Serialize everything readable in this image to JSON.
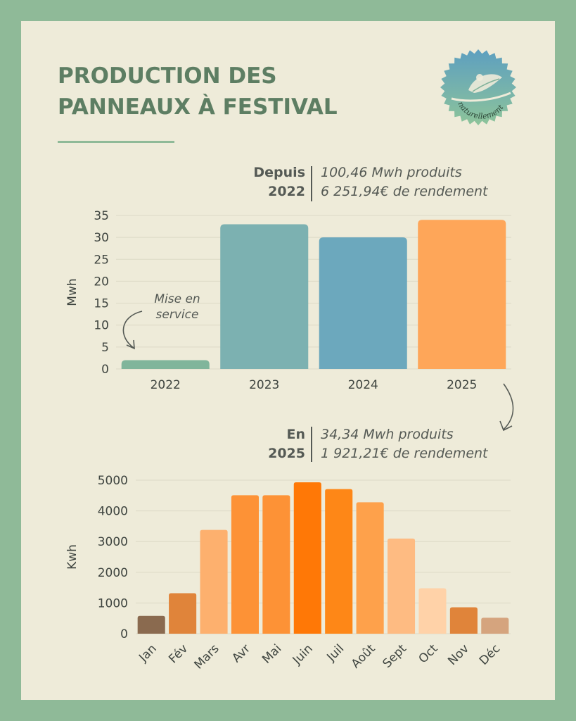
{
  "title": {
    "line1": "PRODUCTION DES",
    "line2": "PANNEAUX À FESTIVAL"
  },
  "logo": {
    "text": "naturellement",
    "icon": "leaf-sun-badge-icon"
  },
  "colors": {
    "frame": "#8fba98",
    "background": "#eeebd9",
    "title": "#5d7e63",
    "text": "#555a55"
  },
  "summary_total": {
    "label_line1": "Depuis",
    "label_line2": "2022",
    "value_line1": "100,46 Mwh produits",
    "value_line2": "6 251,94€ de rendement"
  },
  "summary_2025": {
    "label_line1": "En",
    "label_line2": "2025",
    "value_line1": "34,34 Mwh produits",
    "value_line2": "1 921,21€ de rendement"
  },
  "annotation": {
    "line1": "Mise en",
    "line2": "service"
  },
  "chart_data": [
    {
      "type": "bar",
      "categories": [
        "2022",
        "2023",
        "2024",
        "2025"
      ],
      "values": [
        2,
        33,
        30,
        34
      ],
      "ylabel": "Mwh",
      "ylim": [
        0,
        35
      ],
      "yticks": [
        0,
        5,
        10,
        15,
        20,
        25,
        30,
        35
      ],
      "grid": true,
      "colors": [
        "#80b59b",
        "#7cb1b1",
        "#6ca8bd",
        "#fea659"
      ]
    },
    {
      "type": "bar",
      "categories": [
        "Jan",
        "Fév",
        "Mars",
        "Avr",
        "Mai",
        "Juin",
        "Juil",
        "Août",
        "Sept",
        "Oct",
        "Nov",
        "Déc"
      ],
      "values": [
        580,
        1320,
        3380,
        4510,
        4510,
        4930,
        4710,
        4280,
        3100,
        1480,
        860,
        520
      ],
      "ylabel": "Kwh",
      "ylim": [
        0,
        5000
      ],
      "yticks": [
        0,
        1000,
        2000,
        3000,
        4000,
        5000
      ],
      "grid": true,
      "colors": [
        "#8a6a4f",
        "#e0843a",
        "#fdb06e",
        "#fd9236",
        "#fd9236",
        "#ff7806",
        "#fe8717",
        "#fea14b",
        "#febb82",
        "#ffd2a8",
        "#e0843a",
        "#d5a47e"
      ]
    }
  ]
}
